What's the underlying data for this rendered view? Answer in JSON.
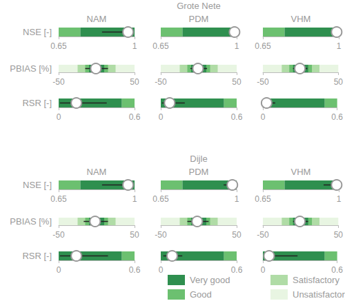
{
  "chart_data": {
    "type": "bullet",
    "classes": [
      {
        "name": "Very good",
        "color": "#2f8f4f"
      },
      {
        "name": "Good",
        "color": "#6cc070"
      },
      {
        "name": "Satisfactory",
        "color": "#b0dca6"
      },
      {
        "name": "Unsatisfactory",
        "color": "#e8f5e2"
      }
    ],
    "columns": [
      "NAM",
      "PDM",
      "VHM"
    ],
    "metrics": [
      {
        "label": "NSE [-]",
        "xlim": [
          0.65,
          1
        ],
        "xticks": [
          0.65,
          1
        ],
        "bands": [
          {
            "class": "Good",
            "from": 0.65,
            "to": 0.75
          },
          {
            "class": "Very good",
            "from": 0.75,
            "to": 1
          }
        ]
      },
      {
        "label": "PBIAS [%]",
        "xlim": [
          -50,
          50
        ],
        "xticks": [
          -50,
          50
        ],
        "bands": [
          {
            "class": "Unsatisfactory",
            "from": -50,
            "to": 50
          },
          {
            "class": "Satisfactory",
            "from": -25,
            "to": 25
          },
          {
            "class": "Good",
            "from": -15,
            "to": 15
          },
          {
            "class": "Very good",
            "from": -10,
            "to": 10
          }
        ]
      },
      {
        "label": "RSR [-]",
        "xlim": [
          0,
          0.6
        ],
        "xticks": [
          0,
          0.6
        ],
        "bands": [
          {
            "class": "Very good",
            "from": 0,
            "to": 0.5
          },
          {
            "class": "Good",
            "from": 0.5,
            "to": 0.6
          }
        ]
      }
    ],
    "sections": [
      {
        "title": "Grote Nete",
        "values": [
          [
            {
              "value": 0.97,
              "range": [
                0.85,
                0.99
              ]
            },
            {
              "value": 0.99,
              "range": [
                0.98,
                0.995
              ]
            },
            {
              "value": 0.99,
              "range": [
                0.985,
                0.995
              ]
            }
          ],
          [
            {
              "value": -1,
              "range": [
                -15,
                15
              ]
            },
            {
              "value": -1,
              "range": [
                -11,
                11
              ]
            },
            {
              "value": -1,
              "range": [
                -10,
                9
              ]
            }
          ],
          [
            {
              "value": 0.14,
              "range": [
                0.01,
                0.38
              ]
            },
            {
              "value": 0.07,
              "range": [
                0.01,
                0.19
              ]
            },
            {
              "value": 0.03,
              "range": [
                0.01,
                0.1
              ]
            }
          ]
        ]
      },
      {
        "title": "Dijle",
        "values": [
          [
            {
              "value": 0.97,
              "range": [
                0.85,
                0.99
              ]
            },
            {
              "value": 0.98,
              "range": [
                0.94,
                0.99
              ]
            },
            {
              "value": 0.99,
              "range": [
                0.93,
                0.995
              ]
            }
          ],
          [
            {
              "value": -2,
              "range": [
                -17,
                15
              ]
            },
            {
              "value": -2,
              "range": [
                -15,
                13
              ]
            },
            {
              "value": -1,
              "range": [
                -10,
                10
              ]
            }
          ],
          [
            {
              "value": 0.14,
              "range": [
                0.01,
                0.39
              ]
            },
            {
              "value": 0.09,
              "range": [
                0.02,
                0.17
              ]
            },
            {
              "value": 0.05,
              "range": [
                0.01,
                0.28
              ]
            }
          ]
        ]
      }
    ]
  }
}
